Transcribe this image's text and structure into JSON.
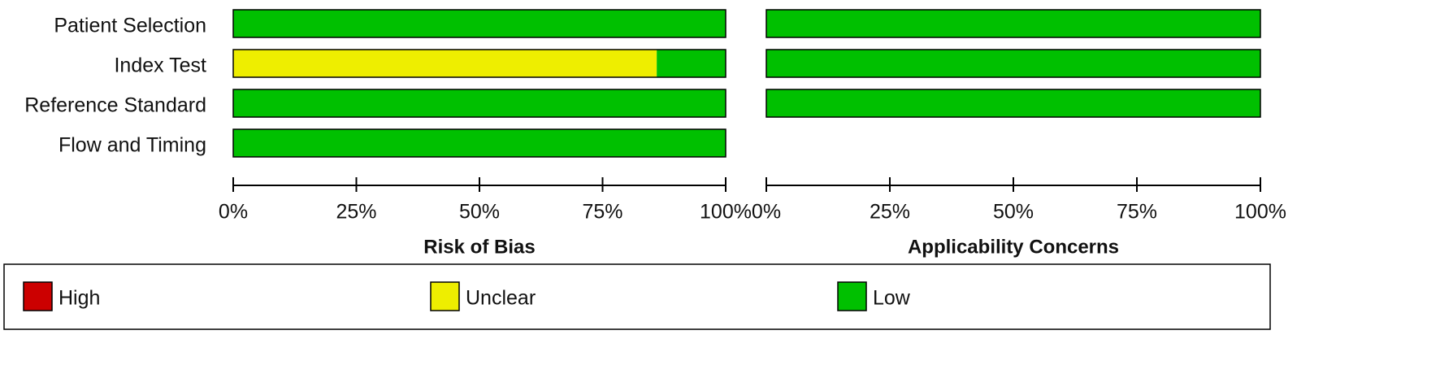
{
  "chart_data": [
    {
      "type": "stacked-bar",
      "orientation": "horizontal",
      "title": "Risk of Bias",
      "categories": [
        "Patient Selection",
        "Index Test",
        "Reference Standard",
        "Flow and Timing"
      ],
      "series": [
        {
          "name": "High",
          "color": "#cc0000",
          "values": [
            0,
            0,
            0,
            0
          ]
        },
        {
          "name": "Unclear",
          "color": "#eeee00",
          "values": [
            0,
            86,
            0,
            0
          ]
        },
        {
          "name": "Low",
          "color": "#00c000",
          "values": [
            100,
            14,
            100,
            100
          ]
        }
      ],
      "xlim": [
        0,
        100
      ],
      "xticks": [
        {
          "value": 0,
          "label": "0%"
        },
        {
          "value": 25,
          "label": "25%"
        },
        {
          "value": 50,
          "label": "50%"
        },
        {
          "value": 75,
          "label": "75%"
        },
        {
          "value": 100,
          "label": "100%"
        }
      ]
    },
    {
      "type": "stacked-bar",
      "orientation": "horizontal",
      "title": "Applicability Concerns",
      "categories": [
        "Patient Selection",
        "Index Test",
        "Reference Standard",
        "Flow and Timing"
      ],
      "series": [
        {
          "name": "High",
          "color": "#cc0000",
          "values": [
            0,
            0,
            0,
            null
          ]
        },
        {
          "name": "Unclear",
          "color": "#eeee00",
          "values": [
            0,
            0,
            0,
            null
          ]
        },
        {
          "name": "Low",
          "color": "#00c000",
          "values": [
            100,
            100,
            100,
            null
          ]
        }
      ],
      "xlim": [
        0,
        100
      ],
      "xticks": [
        {
          "value": 0,
          "label": "0%"
        },
        {
          "value": 25,
          "label": "25%"
        },
        {
          "value": 50,
          "label": "50%"
        },
        {
          "value": 75,
          "label": "75%"
        },
        {
          "value": 100,
          "label": "100%"
        }
      ]
    }
  ]
}
